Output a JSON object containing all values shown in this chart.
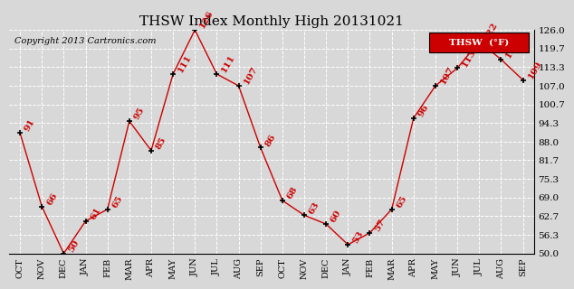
{
  "title": "THSW Index Monthly High 20131021",
  "copyright": "Copyright 2013 Cartronics.com",
  "legend_label": "THSW  (°F)",
  "months": [
    "OCT",
    "NOV",
    "DEC",
    "JAN",
    "FEB",
    "MAR",
    "APR",
    "MAY",
    "JUN",
    "JUL",
    "AUG",
    "SEP",
    "OCT",
    "NOV",
    "DEC",
    "JAN",
    "FEB",
    "MAR",
    "APR",
    "MAY",
    "JUN",
    "JUL",
    "AUG",
    "SEP"
  ],
  "values": [
    91,
    66,
    50,
    61,
    65,
    95,
    85,
    111,
    126,
    111,
    107,
    86,
    68,
    63,
    60,
    53,
    57,
    65,
    96,
    107,
    113,
    122,
    116,
    109
  ],
  "ylim": [
    50.0,
    126.0
  ],
  "yticks": [
    50.0,
    56.3,
    62.7,
    69.0,
    75.3,
    81.7,
    88.0,
    94.3,
    100.7,
    107.0,
    113.3,
    119.7,
    126.0
  ],
  "line_color": "#CC0000",
  "marker_color": "#000000",
  "label_color": "#CC0000",
  "bg_color": "#D8D8D8",
  "grid_color": "#FFFFFF",
  "title_fontsize": 11,
  "label_fontsize": 7.5,
  "copyright_fontsize": 7,
  "legend_bg": "#CC0000",
  "legend_text_color": "#FFFFFF"
}
